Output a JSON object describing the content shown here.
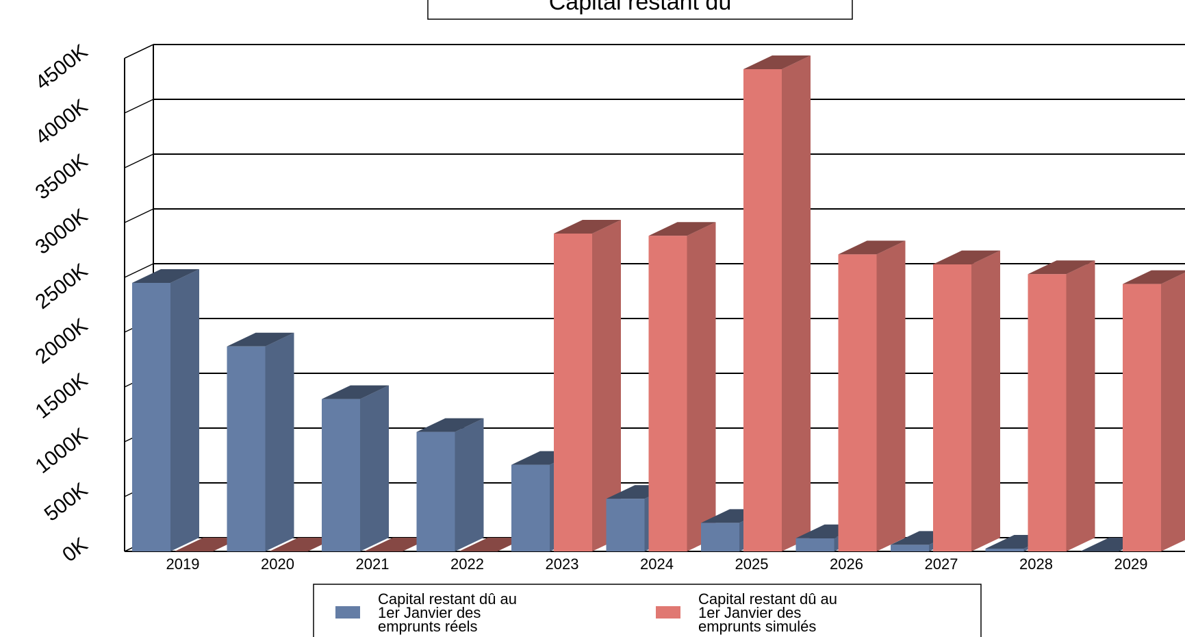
{
  "chart_data": {
    "type": "bar",
    "title": "Capital restant dû",
    "xlabel": "",
    "ylabel": "",
    "categories": [
      "2019",
      "2020",
      "2021",
      "2022",
      "2023",
      "2024",
      "2025",
      "2026",
      "2027",
      "2028",
      "2029"
    ],
    "y_tick_labels": [
      "0K",
      "500K",
      "1000K",
      "1500K",
      "2000K",
      "2500K",
      "3000K",
      "3500K",
      "4000K",
      "4500K"
    ],
    "ylim": [
      0,
      4500
    ],
    "grid": true,
    "legend_position": "bottom",
    "three_d": true,
    "series": [
      {
        "name": "Capital restant dû au 1er Janvier des emprunts réels",
        "legend_lines": [
          "Capital restant dû au",
          "1er Janvier des",
          "emprunts réels"
        ],
        "color": "#647da5",
        "values": [
          2450,
          1870,
          1390,
          1090,
          790,
          480,
          260,
          120,
          60,
          25,
          0
        ]
      },
      {
        "name": "Capital restant dû au 1er Janvier des emprunts simulés",
        "legend_lines": [
          "Capital restant dû au",
          "1er Janvier des",
          "emprunts simulés"
        ],
        "color": "#e07872",
        "values": [
          0,
          0,
          0,
          0,
          2900,
          2880,
          4400,
          2710,
          2620,
          2530,
          2440
        ]
      }
    ]
  }
}
